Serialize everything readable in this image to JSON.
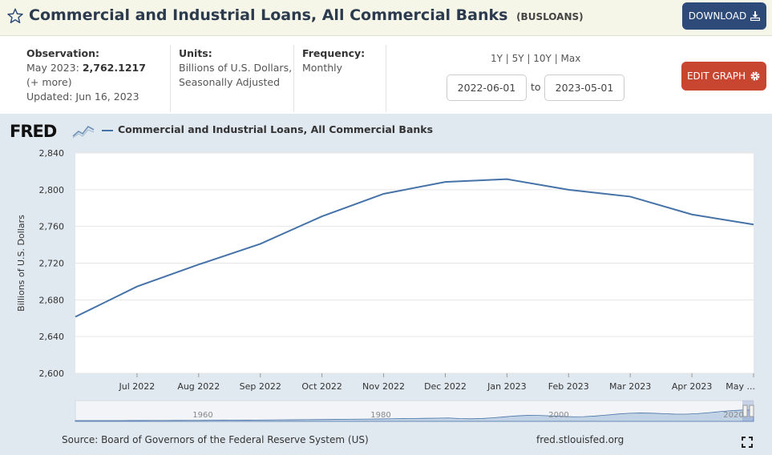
{
  "header": {
    "title": "Commercial and Industrial Loans, All Commercial Banks",
    "series_id": "(BUSLOANS)",
    "download_label": "DOWNLOAD"
  },
  "info": {
    "observation_label": "Observation:",
    "observation_date": "May 2023:",
    "observation_value": "2,762.1217",
    "more_label": "(+ more)",
    "updated": "Updated: Jun 16, 2023",
    "units_label": "Units:",
    "units_line1": "Billions of U.S. Dollars,",
    "units_line2": "Seasonally Adjusted",
    "frequency_label": "Frequency:",
    "frequency_value": "Monthly"
  },
  "range": {
    "links": "1Y | 5Y | 10Y | Max",
    "start_date": "2022-06-01",
    "to_label": "to",
    "end_date": "2023-05-01",
    "edit_label": "EDIT GRAPH"
  },
  "graph": {
    "logo": "FRED",
    "source": "Source: Board of Governors of the Federal Reserve System (US)",
    "url": "fred.stlouisfed.org"
  },
  "colors": {
    "line": "#4572a7",
    "header_bg": "#f6f6e8",
    "download_btn": "#2d4a78",
    "edit_btn": "#c8452f",
    "graph_bg": "#e1e9f0"
  },
  "chart_data": {
    "type": "line",
    "title": "Commercial and Industrial Loans, All Commercial Banks",
    "ylabel": "Billions of U.S. Dollars",
    "xlabel": "",
    "ylim": [
      2600,
      2840
    ],
    "yticks": [
      2600,
      2640,
      2680,
      2720,
      2760,
      2800,
      2840
    ],
    "ytick_labels": [
      "2,600",
      "2,640",
      "2,680",
      "2,720",
      "2,760",
      "2,800",
      "2,840"
    ],
    "x": [
      "2022-06",
      "2022-07",
      "2022-08",
      "2022-09",
      "2022-10",
      "2022-11",
      "2022-12",
      "2023-01",
      "2023-02",
      "2023-03",
      "2023-04",
      "2023-05"
    ],
    "xtick_labels": [
      "Jul 2022",
      "Aug 2022",
      "Sep 2022",
      "Oct 2022",
      "Nov 2022",
      "Dec 2022",
      "Jan 2023",
      "Feb 2023",
      "Mar 2023",
      "Apr 2023",
      "May ..."
    ],
    "series": [
      {
        "name": "Commercial and Industrial Loans, All Commercial Banks",
        "values": [
          2661.5,
          2694.5,
          2718.5,
          2741.0,
          2771.0,
          2795.5,
          2808.5,
          2811.5,
          2800.0,
          2792.5,
          2773.0,
          2762.1217
        ]
      }
    ],
    "grid": true,
    "legend": "top-left",
    "navigator_labels": [
      "1960",
      "1980",
      "2000",
      "2020"
    ]
  }
}
